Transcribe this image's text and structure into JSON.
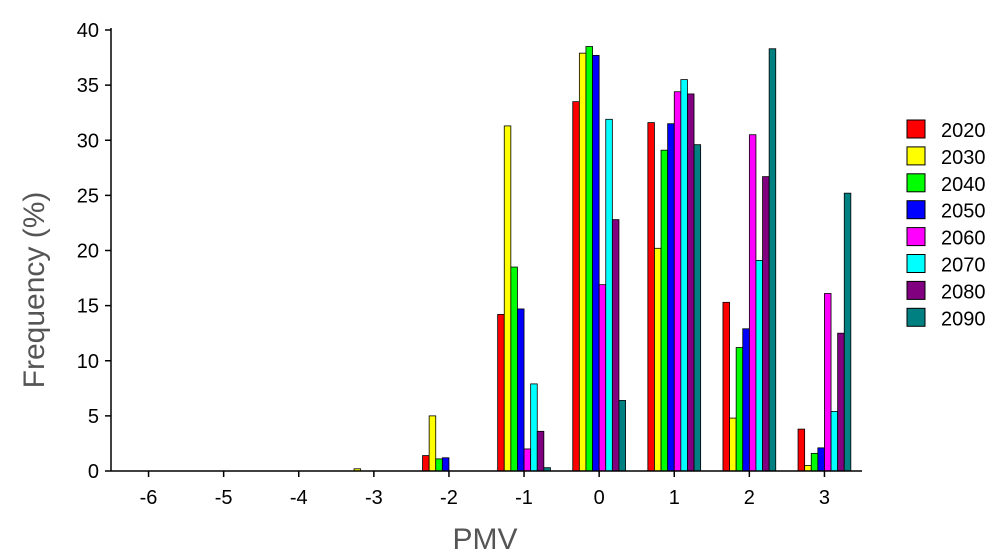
{
  "chart_data": {
    "type": "bar",
    "xlabel": "PMV",
    "ylabel": "Frequency (%)",
    "ylim": [
      0,
      40
    ],
    "yticks": [
      "0",
      "5",
      "10",
      "15",
      "20",
      "25",
      "30",
      "35",
      "40"
    ],
    "categories": [
      "-6",
      "-5",
      "-4",
      "-3",
      "-2",
      "-1",
      "0",
      "1",
      "2",
      "3"
    ],
    "legend_position": "right",
    "grid": false,
    "series": [
      {
        "name": "2020",
        "color": "#ff0000",
        "values": [
          0,
          0,
          0,
          0,
          1.4,
          14.2,
          33.5,
          31.6,
          15.3,
          3.8
        ]
      },
      {
        "name": "2030",
        "color": "#ffff00",
        "values": [
          0,
          0,
          0,
          0.2,
          5.0,
          31.3,
          37.9,
          20.2,
          4.8,
          0.5
        ]
      },
      {
        "name": "2040",
        "color": "#00ff00",
        "values": [
          0,
          0,
          0,
          0,
          1.1,
          18.5,
          38.5,
          29.1,
          11.2,
          1.6
        ]
      },
      {
        "name": "2050",
        "color": "#0000ff",
        "values": [
          0,
          0,
          0,
          0,
          1.2,
          14.7,
          37.7,
          31.5,
          12.9,
          2.1
        ]
      },
      {
        "name": "2060",
        "color": "#ff00ff",
        "values": [
          0,
          0,
          0,
          0,
          0,
          2.0,
          16.9,
          34.4,
          30.5,
          16.1
        ]
      },
      {
        "name": "2070",
        "color": "#00ffff",
        "values": [
          0,
          0,
          0,
          0,
          0,
          7.9,
          31.9,
          35.5,
          19.1,
          5.4
        ]
      },
      {
        "name": "2080",
        "color": "#800080",
        "values": [
          0,
          0,
          0,
          0,
          0,
          3.6,
          22.8,
          34.2,
          26.7,
          12.5
        ]
      },
      {
        "name": "2090",
        "color": "#008080",
        "values": [
          0,
          0,
          0,
          0,
          0,
          0.3,
          6.4,
          29.6,
          38.3,
          25.2
        ]
      }
    ]
  }
}
